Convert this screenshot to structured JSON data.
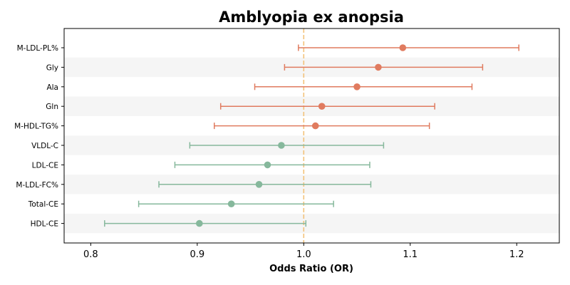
{
  "chart_data": {
    "type": "forest",
    "title": "Amblyopia ex anopsia",
    "xlabel": "Odds Ratio (OR)",
    "ylabel": "",
    "xlim": [
      0.775,
      1.24
    ],
    "xticks": [
      0.8,
      0.9,
      1.0,
      1.1,
      1.2
    ],
    "xtick_labels": [
      "0.8",
      "0.9",
      "1.0",
      "1.1",
      "1.2"
    ],
    "reference_line": 1.0,
    "colors": {
      "positive": "#e07b5f",
      "negative": "#86b89c",
      "reference": "#f3c27a",
      "band": "#f5f5f5"
    },
    "rows": [
      {
        "label": "M-LDL-PL%",
        "or": 1.093,
        "lower": 0.995,
        "upper": 1.202,
        "group": "positive"
      },
      {
        "label": "Gly",
        "or": 1.07,
        "lower": 0.982,
        "upper": 1.168,
        "group": "positive"
      },
      {
        "label": "Ala",
        "or": 1.05,
        "lower": 0.954,
        "upper": 1.158,
        "group": "positive"
      },
      {
        "label": "Gln",
        "or": 1.017,
        "lower": 0.922,
        "upper": 1.123,
        "group": "positive"
      },
      {
        "label": "M-HDL-TG%",
        "or": 1.011,
        "lower": 0.916,
        "upper": 1.118,
        "group": "positive"
      },
      {
        "label": "VLDL-C",
        "or": 0.979,
        "lower": 0.893,
        "upper": 1.075,
        "group": "negative"
      },
      {
        "label": "LDL-CE",
        "or": 0.966,
        "lower": 0.879,
        "upper": 1.062,
        "group": "negative"
      },
      {
        "label": "M-LDL-FC%",
        "or": 0.958,
        "lower": 0.864,
        "upper": 1.063,
        "group": "negative"
      },
      {
        "label": "Total-CE",
        "or": 0.932,
        "lower": 0.845,
        "upper": 1.028,
        "group": "negative"
      },
      {
        "label": "HDL-CE",
        "or": 0.902,
        "lower": 0.813,
        "upper": 1.002,
        "group": "negative"
      }
    ]
  }
}
